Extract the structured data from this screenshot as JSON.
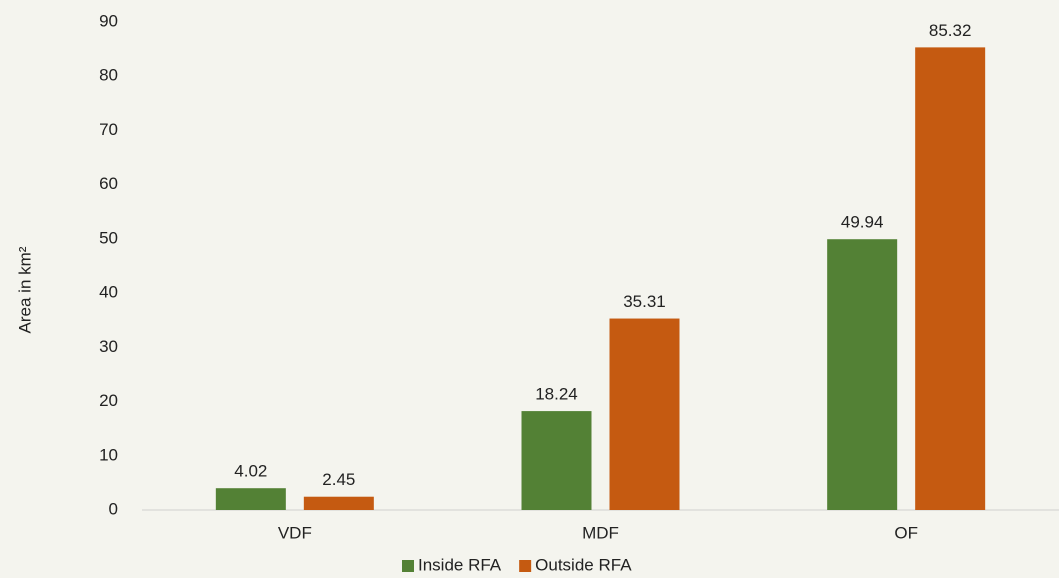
{
  "chart_data": {
    "type": "bar",
    "y_label": "Area in km²",
    "categories": [
      "VDF",
      "MDF",
      "OF"
    ],
    "series": [
      {
        "name": "Inside RFA",
        "color": "#538135",
        "values": [
          4.02,
          18.24,
          49.94
        ]
      },
      {
        "name": "Outside RFA",
        "color": "#c55a11",
        "values": [
          2.45,
          35.31,
          85.32
        ]
      }
    ],
    "ylim": [
      0,
      90
    ],
    "yticks": [
      0,
      10,
      20,
      30,
      40,
      50,
      60,
      70,
      80,
      90
    ],
    "grid": false,
    "legend": "bottom"
  }
}
